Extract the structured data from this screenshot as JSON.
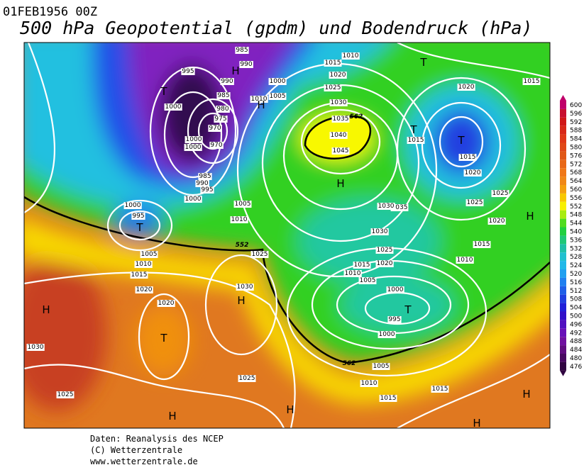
{
  "header": {
    "date": "01FEB1956 00Z",
    "title": "500 hPa Geopotential (gpdm) und Bodendruck (hPa)"
  },
  "map": {
    "contour_labels": [
      "985",
      "990",
      "995",
      "1000",
      "990",
      "985",
      "980",
      "975",
      "970",
      "1000",
      "1000",
      "970",
      "985",
      "990",
      "995",
      "1000",
      "1000",
      "995",
      "1005",
      "1010",
      "1005",
      "1010",
      "1015",
      "1020",
      "1020",
      "1030",
      "1025",
      "1030",
      "1025",
      "1025",
      "1000",
      "1005",
      "1010",
      "1010",
      "1015",
      "1020",
      "1025",
      "1030",
      "1035",
      "1040",
      "1045",
      "1035",
      "1030",
      "1025",
      "1020",
      "1015",
      "1010",
      "1005",
      "1000",
      "995",
      "1000",
      "1005",
      "1010",
      "1015",
      "1015",
      "1020",
      "1015",
      "1015",
      "1020",
      "1025",
      "1025",
      "1020",
      "1015",
      "1010",
      "1015",
      "1030"
    ],
    "geopotential_labels": [
      "562",
      "562",
      "552"
    ],
    "pressure_centers": [
      "T",
      "T",
      "T",
      "T",
      "H",
      "H",
      "H",
      "T",
      "H",
      "H",
      "T",
      "H",
      "T",
      "H",
      "H",
      "H",
      "H"
    ]
  },
  "legend": {
    "levels": [
      600,
      596,
      592,
      588,
      584,
      580,
      576,
      572,
      568,
      564,
      560,
      556,
      552,
      548,
      544,
      540,
      536,
      532,
      528,
      524,
      520,
      516,
      512,
      508,
      504,
      500,
      496,
      492,
      488,
      484,
      480,
      476
    ],
    "colors": [
      "#c0006a",
      "#c81030",
      "#d01818",
      "#d82818",
      "#e03818",
      "#e04818",
      "#e05818",
      "#e86818",
      "#f07818",
      "#f08818",
      "#f4a010",
      "#f8c800",
      "#f8f000",
      "#a8ec10",
      "#50dc20",
      "#20d040",
      "#20c878",
      "#20c0a8",
      "#20c0d0",
      "#20b8e8",
      "#20a0f0",
      "#2080f0",
      "#2060e8",
      "#2040e0",
      "#2020d8",
      "#3010c8",
      "#5010c0",
      "#6810b8",
      "#7010a0",
      "#600c80",
      "#480860",
      "#300440"
    ]
  },
  "footer": {
    "lines": [
      "Daten: Reanalysis des NCEP",
      "(C) Wetterzentrale",
      "www.wetterzentrale.de"
    ]
  }
}
